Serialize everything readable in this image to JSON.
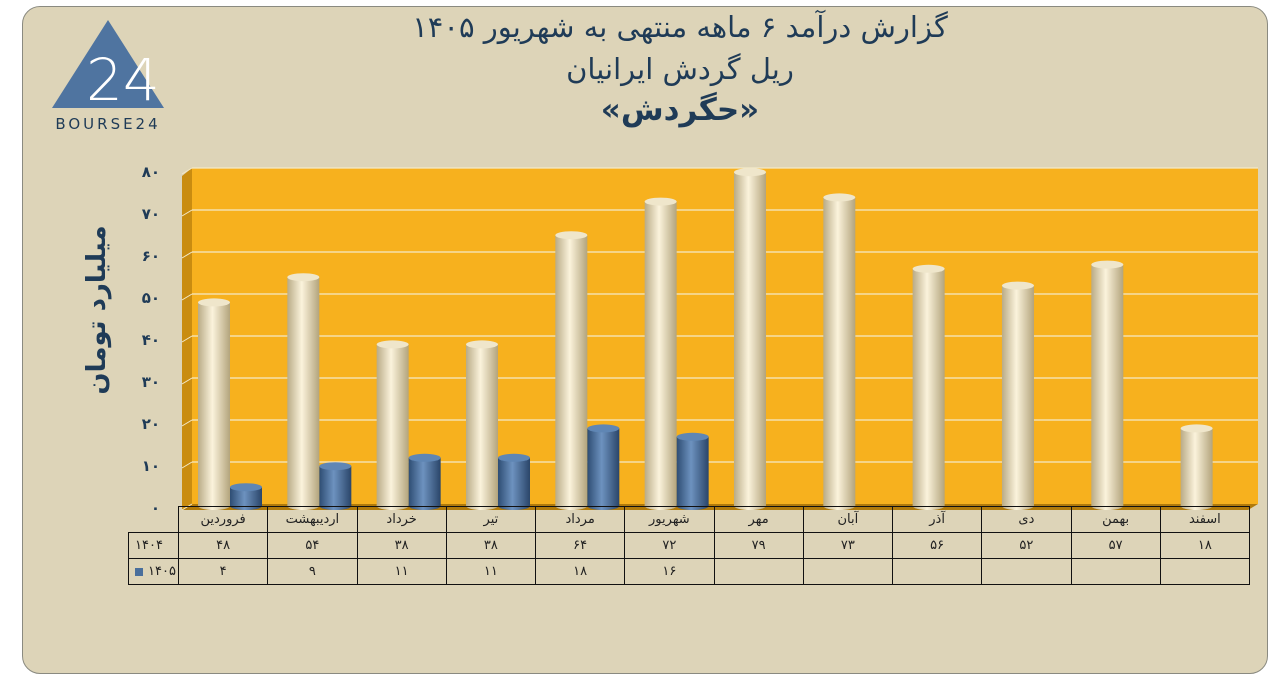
{
  "title": {
    "line1": "گزارش  درآمد ۶ ماهه منتهی به شهریور ۱۴۰۵",
    "line2": "ریل گردش ایرانیان",
    "line3": "«حگردش»"
  },
  "logo": {
    "mark": "24",
    "text": "BOURSE24"
  },
  "colors": {
    "background": "#ddd4b8",
    "plot_area": "#f7b11e",
    "series_1404": "#e8dcbc",
    "series_1405": "#4a6f9c",
    "text": "#1f3b57"
  },
  "chart_data": {
    "type": "bar",
    "ylabel": "میلیارد تومان",
    "ylim": [
      0,
      80
    ],
    "yticks": [
      "۰",
      "۱۰",
      "۲۰",
      "۳۰",
      "۴۰",
      "۵۰",
      "۶۰",
      "۷۰",
      "۸۰"
    ],
    "yticks_values": [
      0,
      10,
      20,
      30,
      40,
      50,
      60,
      70,
      80
    ],
    "grid": true,
    "categories": [
      "فروردین",
      "اردیبهشت",
      "خرداد",
      "تیر",
      "مرداد",
      "شهریور",
      "مهر",
      "آبان",
      "آذر",
      "دی",
      "بهمن",
      "اسفند"
    ],
    "series": [
      {
        "name": "۱۴۰۴",
        "values": [
          48,
          54,
          38,
          38,
          64,
          72,
          79,
          73,
          56,
          52,
          57,
          18
        ],
        "labels": [
          "۴۸",
          "۵۴",
          "۳۸",
          "۳۸",
          "۶۴",
          "۷۲",
          "۷۹",
          "۷۳",
          "۵۶",
          "۵۲",
          "۵۷",
          "۱۸"
        ]
      },
      {
        "name": "۱۴۰۵",
        "values": [
          4,
          9,
          11,
          11,
          18,
          16,
          null,
          null,
          null,
          null,
          null,
          null
        ],
        "labels": [
          "۴",
          "۹",
          "۱۱",
          "۱۱",
          "۱۸",
          "۱۶",
          "",
          "",
          "",
          "",
          "",
          ""
        ]
      }
    ]
  }
}
